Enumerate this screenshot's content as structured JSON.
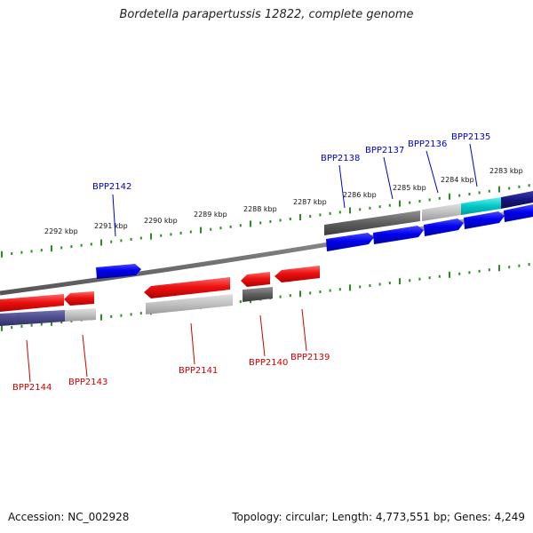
{
  "title": "Bordetella parapertussis 12822, complete genome",
  "footer": {
    "accession": "Accession: NC_002928",
    "topology": "Topology: circular; Length: 4,773,551 bp; Genes: 4,249"
  },
  "colors": {
    "forward_gene": "#0000ee",
    "reverse_gene": "#ee1111",
    "tick_mark": "#2e8b22",
    "backbone": "#7d7d7d",
    "forward_label": "#0000cc",
    "reverse_label": "#cc0000"
  },
  "kbp_labels": [
    "2292 kbp",
    "2291 kbp",
    "2290 kbp",
    "2289 kbp",
    "2288 kbp",
    "2287 kbp",
    "2286 kbp",
    "2285 kbp",
    "2284 kbp",
    "2283 kbp"
  ],
  "forward_genes": [
    "BPP2142",
    "BPP2138",
    "BPP2137",
    "BPP2136",
    "BPP2135"
  ],
  "reverse_genes": [
    "BPP2144",
    "BPP2143",
    "BPP2141",
    "BPP2140",
    "BPP2139"
  ]
}
